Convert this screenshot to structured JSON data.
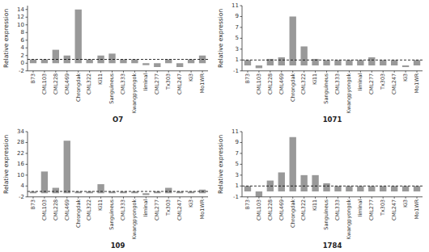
{
  "chart_data": [
    {
      "type": "bar",
      "xlabel": "O7",
      "ylabel": "Relative expression",
      "categories": [
        "B73",
        "CML103",
        "CML228",
        "CML469",
        "Chrongdak",
        "CML322",
        "Ki11",
        "Sanguineus",
        "CML333",
        "Kwangpyongok",
        "Iiminal",
        "CML277",
        "Tx303",
        "CML247",
        "Ki3",
        "Mo1WR"
      ],
      "values": [
        1.0,
        1.0,
        3.5,
        2.0,
        14.0,
        1.0,
        2.0,
        2.5,
        1.0,
        1.0,
        -0.5,
        -1.0,
        1.0,
        -1.0,
        1.0,
        2.0
      ],
      "color": "#999999",
      "reference_line": 1,
      "ylim": [
        -2,
        15
      ],
      "yticks": [
        -2,
        0,
        2,
        4,
        6,
        8,
        10,
        12,
        14
      ],
      "grid": false
    },
    {
      "type": "bar",
      "xlabel": "1071",
      "ylabel": "Relative expression",
      "categories": [
        "B73",
        "CML103",
        "CML228",
        "CML469",
        "Chrongdak",
        "CML322",
        "Ki11",
        "Sanguineus",
        "CML333",
        "Kwangpyongok",
        "Iiminal",
        "CML277",
        "Tx303",
        "CML247",
        "Ki3",
        "Mo1WR"
      ],
      "values": [
        1.0,
        -0.5,
        1.2,
        1.5,
        9.0,
        3.5,
        1.2,
        1.0,
        1.0,
        1.0,
        1.0,
        1.5,
        1.0,
        1.0,
        -0.3,
        1.0
      ],
      "color": "#999999",
      "reference_line": 1,
      "ylim": [
        -1,
        11
      ],
      "yticks": [
        -1,
        1,
        3,
        5,
        7,
        9,
        11
      ],
      "grid": false
    },
    {
      "type": "bar",
      "xlabel": "109",
      "ylabel": "Relative expression",
      "categories": [
        "B73",
        "CML103",
        "CML228",
        "CML469",
        "Chrongdak",
        "CML322",
        "Ki11",
        "Sanguineus",
        "CML333",
        "Kwangpyongok",
        "Iiminal",
        "CML277",
        "Tx303",
        "CML247",
        "Ki3",
        "Mo1WR"
      ],
      "values": [
        1.0,
        12.0,
        3.0,
        29.0,
        1.0,
        1.0,
        5.0,
        1.0,
        1.0,
        1.0,
        -1.0,
        1.0,
        3.0,
        1.0,
        1.0,
        2.0
      ],
      "color": "#999999",
      "reference_line": 1,
      "ylim": [
        -2,
        34
      ],
      "yticks": [
        -2,
        4,
        10,
        16,
        22,
        28,
        34
      ],
      "grid": false
    },
    {
      "type": "bar",
      "xlabel": "1784",
      "ylabel": "Relative expression",
      "categories": [
        "B73",
        "CML103",
        "CML228",
        "CML469",
        "Chrongdak",
        "CML322",
        "Ki11",
        "Sanguineus",
        "CML333",
        "Kwangpyongok",
        "Iiminal",
        "CML277",
        "Tx303",
        "CML247",
        "Ki3",
        "Mo1WR"
      ],
      "values": [
        1.0,
        -1.0,
        2.0,
        3.5,
        10.0,
        3.0,
        3.0,
        1.5,
        1.0,
        1.0,
        1.0,
        1.0,
        1.0,
        1.0,
        1.0,
        1.0
      ],
      "color": "#999999",
      "reference_line": 1,
      "ylim": [
        -1,
        11
      ],
      "yticks": [
        -1,
        1,
        3,
        5,
        7,
        9,
        11
      ],
      "grid": false
    }
  ]
}
